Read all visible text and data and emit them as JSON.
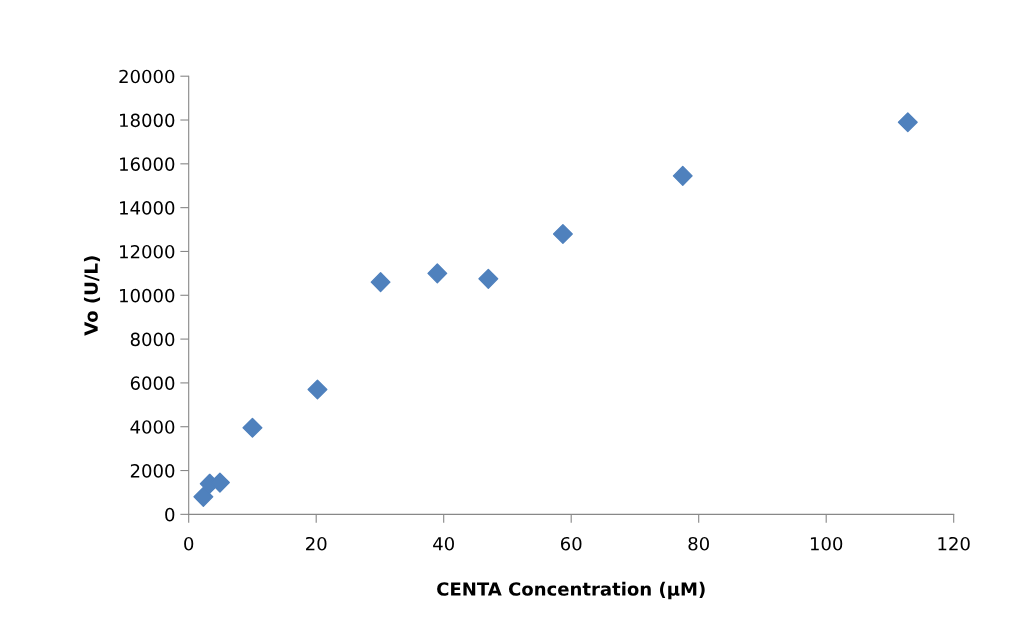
{
  "chart_data": {
    "type": "scatter",
    "xlabel": "CENTA Concentration (μM)",
    "ylabel": "Vo (U/L)",
    "x": [
      2.3,
      3.3,
      4.9,
      10.0,
      20.2,
      30.1,
      39.0,
      47.0,
      58.7,
      77.5,
      112.8
    ],
    "series": [
      {
        "color": "#4f81bd",
        "values": [
          800,
          1400,
          1450,
          3950,
          5700,
          10600,
          11000,
          10750,
          12800,
          15450,
          17900
        ]
      }
    ],
    "xlim": [
      0,
      120
    ],
    "xticks": [
      0,
      20,
      40,
      60,
      80,
      100,
      120
    ],
    "ylim": [
      0,
      20000
    ],
    "yticks": [
      0,
      2000,
      4000,
      6000,
      8000,
      10000,
      12000,
      14000,
      16000,
      18000,
      20000
    ],
    "grid": false,
    "legend": false,
    "marker": "diamond"
  }
}
